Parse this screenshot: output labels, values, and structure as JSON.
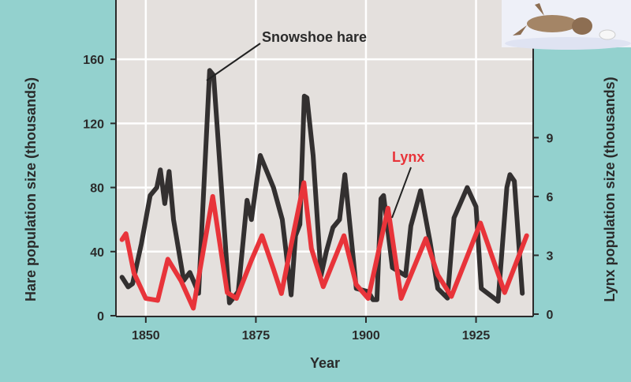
{
  "chart_data": {
    "type": "line",
    "title": "",
    "xlabel": "Year",
    "ylabel": "Hare population size (thousands)",
    "ylabel_right": "Lynx population size (thousands)",
    "xlim": [
      1843.4,
      1937.8
    ],
    "ylim": [
      0,
      197
    ],
    "ylim_right": [
      0,
      16.1
    ],
    "x_ticks": [
      "1850",
      "1875",
      "1900",
      "1925"
    ],
    "y_ticks": [
      "0",
      "40",
      "80",
      "120",
      "160"
    ],
    "y_ticks_right": [
      "0",
      "3",
      "6",
      "9"
    ],
    "grid": true,
    "annotations": [
      "Snowshoe hare",
      "Lynx"
    ],
    "colors": {
      "hare": "#333030",
      "lynx": "#e8343a",
      "plot_bg": "#e4e0dd",
      "page_bg": "#93d1ce"
    },
    "series": [
      {
        "name": "Snowshoe hare",
        "axis": "left",
        "x": [
          1844.6,
          1846,
          1847,
          1849,
          1851,
          1852.5,
          1853.3,
          1854.3,
          1855.3,
          1856.3,
          1858.6,
          1860,
          1861.1,
          1862,
          1864.5,
          1865.4,
          1869,
          1871,
          1873,
          1874,
          1876,
          1879,
          1881,
          1883,
          1884,
          1885,
          1886,
          1886.6,
          1888,
          1889.8,
          1891,
          1892.5,
          1894,
          1895.2,
          1897.8,
          1900.5,
          1901.6,
          1902.5,
          1903.4,
          1904,
          1906,
          1909,
          1910.2,
          1912.4,
          1914.5,
          1916.3,
          1918.5,
          1920,
          1923,
          1925,
          1926.2,
          1930,
          1932,
          1932.7,
          1933.7,
          1935.5
        ],
        "values": [
          24,
          18,
          20,
          45,
          75,
          80,
          91,
          70,
          90,
          60,
          22,
          27,
          20,
          14,
          153,
          150,
          8,
          15,
          72,
          60,
          100,
          80,
          60,
          13,
          50,
          57,
          137,
          136,
          100,
          25,
          40,
          55,
          60,
          88,
          17,
          15,
          10,
          10,
          73,
          75,
          30,
          25,
          56,
          78,
          47,
          17,
          11,
          61,
          80,
          68,
          17,
          9,
          80,
          88,
          84,
          14
        ]
      },
      {
        "name": "Lynx",
        "axis": "right",
        "x": [
          1844.6,
          1845.5,
          1847.3,
          1850,
          1852.7,
          1855,
          1858,
          1860.8,
          1865.2,
          1868.5,
          1870.6,
          1874,
          1876.4,
          1879,
          1880.8,
          1883.7,
          1885.9,
          1887.6,
          1890.3,
          1895,
          1897.8,
          1900.5,
          1905,
          1908,
          1913.6,
          1916.3,
          1919.4,
          1926,
          1931.5,
          1936.5
        ],
        "values": [
          3.8,
          4.1,
          2.1,
          0.8,
          0.7,
          2.8,
          1.7,
          0.3,
          6.0,
          1.1,
          0.8,
          2.75,
          4.0,
          2.3,
          1.05,
          4.3,
          6.7,
          3.35,
          1.4,
          4.0,
          1.5,
          0.8,
          5.4,
          0.8,
          3.85,
          2.0,
          0.9,
          4.65,
          1.1,
          4.0
        ]
      }
    ]
  }
}
